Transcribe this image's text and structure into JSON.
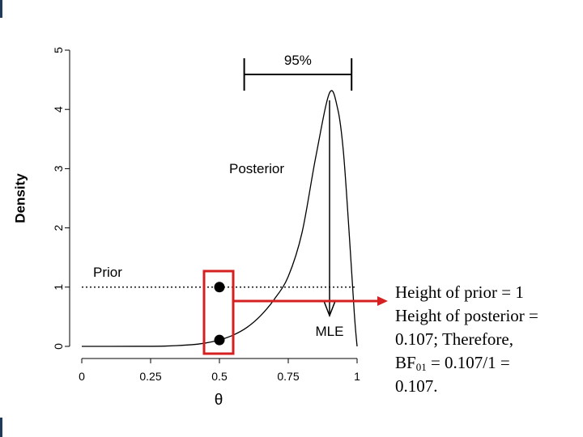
{
  "chart_data": {
    "type": "line",
    "xlabel": "θ",
    "ylabel": "Density",
    "xlim": [
      0,
      1
    ],
    "ylim": [
      0,
      5
    ],
    "x_ticks": [
      "0",
      "0.25",
      "0.5",
      "0.75",
      "1"
    ],
    "y_ticks": [
      "0",
      "1",
      "2",
      "3",
      "4",
      "5"
    ],
    "series": [
      {
        "name": "Prior",
        "style": "dotted",
        "x": [
          0,
          1
        ],
        "y": [
          1,
          1
        ]
      },
      {
        "name": "Posterior",
        "style": "solid",
        "x": [
          0,
          0.1,
          0.2,
          0.3,
          0.4,
          0.45,
          0.5,
          0.55,
          0.6,
          0.65,
          0.7,
          0.75,
          0.8,
          0.85,
          0.9,
          0.93,
          0.95,
          0.97,
          0.99,
          1.0
        ],
        "y": [
          0,
          0,
          0.001,
          0.004,
          0.028,
          0.057,
          0.107,
          0.19,
          0.32,
          0.52,
          0.8,
          1.18,
          1.92,
          3.2,
          4.28,
          4.0,
          3.3,
          2.0,
          0.55,
          0
        ]
      }
    ],
    "points": [
      {
        "x": 0.5,
        "y": 1
      },
      {
        "x": 0.5,
        "y": 0.107
      }
    ],
    "annotations": {
      "interval_label": "95%",
      "interval": [
        0.59,
        0.98
      ],
      "mle_label": "MLE",
      "mle_x": 0.9,
      "prior_label": "Prior",
      "posterior_label": "Posterior"
    },
    "highlight_color": "#d42020"
  },
  "note": {
    "line1": "Height of prior = 1",
    "line2": "Height of posterior =",
    "line3": "0.107; Therefore,",
    "line4_pre": "BF",
    "line4_sub": "01",
    "line4_post": " = 0.107/1 =",
    "line5": "0.107."
  }
}
